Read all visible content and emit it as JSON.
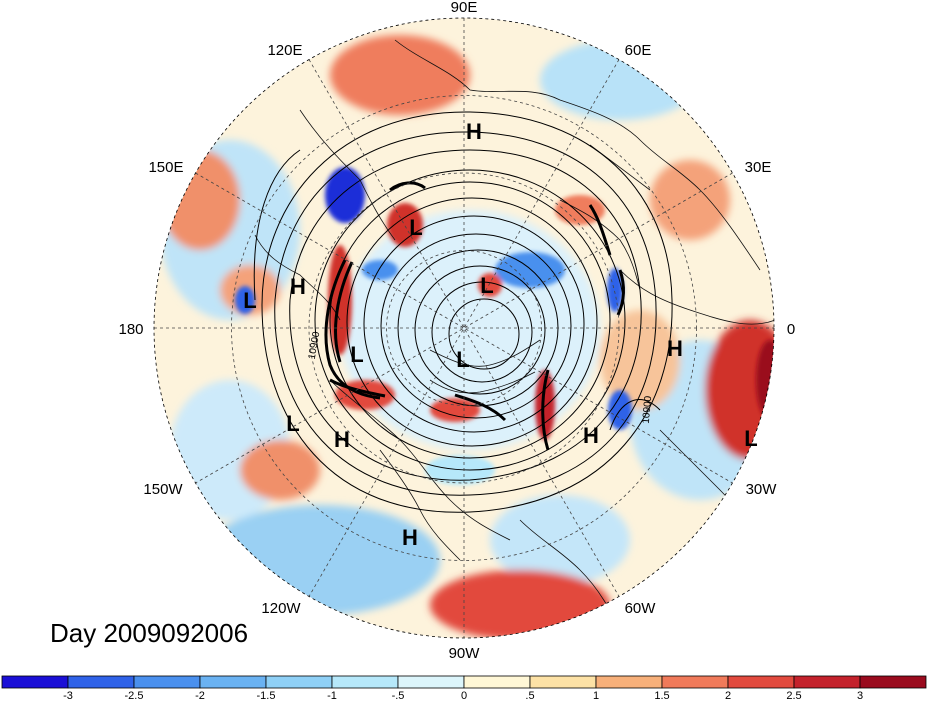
{
  "title": "Day 2009092006",
  "longitude_labels": [
    "90E",
    "60E",
    "30E",
    "0",
    "30W",
    "60W",
    "90W",
    "120W",
    "150W",
    "180",
    "150E",
    "120E"
  ],
  "pressure_systems": [
    {
      "type": "H",
      "name": "north-pole-top"
    },
    {
      "type": "L",
      "name": "east-asia"
    },
    {
      "type": "L",
      "name": "west-siberia"
    },
    {
      "type": "L",
      "name": "north-pacific-west"
    },
    {
      "type": "H",
      "name": "north-pacific"
    },
    {
      "type": "L",
      "name": "bering"
    },
    {
      "type": "L",
      "name": "canada"
    },
    {
      "type": "H",
      "name": "atlantic-east"
    },
    {
      "type": "L",
      "name": "pacific-south"
    },
    {
      "type": "H",
      "name": "pacific-southeast"
    },
    {
      "type": "H",
      "name": "atlantic-south"
    },
    {
      "type": "L",
      "name": "africa-west"
    },
    {
      "type": "H",
      "name": "gulf"
    }
  ],
  "contour_label": "10900",
  "colorbar": {
    "ticks": [
      "-3",
      "-2.5",
      "-2",
      "-1.5",
      "-1",
      "-.5",
      "0",
      ".5",
      "1",
      "1.5",
      "2",
      "2.5",
      "3"
    ],
    "colors": [
      "#1a0fd6",
      "#2f62e8",
      "#4a90ee",
      "#6ab2f2",
      "#8fd0f6",
      "#b6e8fa",
      "#dcf5fb",
      "#fff7d6",
      "#fde2a6",
      "#f7b07a",
      "#f07a5a",
      "#e24a3e",
      "#c4222c",
      "#9a0b1e"
    ]
  },
  "colors": {
    "contour": "#000000",
    "grid": "#444444",
    "coast": "#111111"
  }
}
